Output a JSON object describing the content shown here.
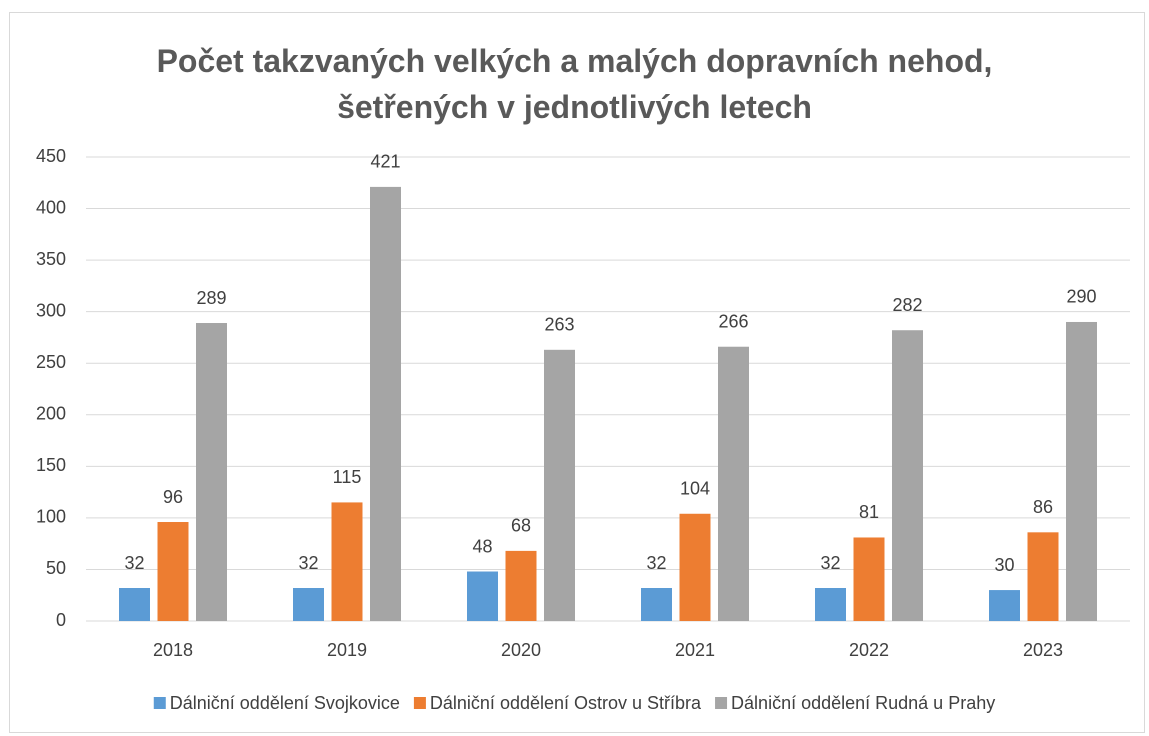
{
  "chart_data": {
    "type": "bar",
    "title": "Počet takzvaných velkých a malých dopravních nehod, šetřených v jednotlivých letech",
    "categories": [
      "2018",
      "2019",
      "2020",
      "2021",
      "2022",
      "2023"
    ],
    "series": [
      {
        "name": "Dálniční oddělení Svojkovice",
        "color": "#5b9bd5",
        "values": [
          32,
          32,
          48,
          32,
          32,
          30
        ]
      },
      {
        "name": "Dálniční oddělení Ostrov u Stříbra",
        "color": "#ed7d31",
        "values": [
          96,
          115,
          68,
          104,
          81,
          86
        ]
      },
      {
        "name": "Dálniční oddělení Rudná u Prahy",
        "color": "#a5a5a5",
        "values": [
          289,
          421,
          263,
          266,
          282,
          290
        ]
      }
    ],
    "ylim": [
      0,
      450
    ],
    "yticks": [
      0,
      50,
      100,
      150,
      200,
      250,
      300,
      350,
      400,
      450
    ],
    "grid": true,
    "legend": "bottom"
  }
}
